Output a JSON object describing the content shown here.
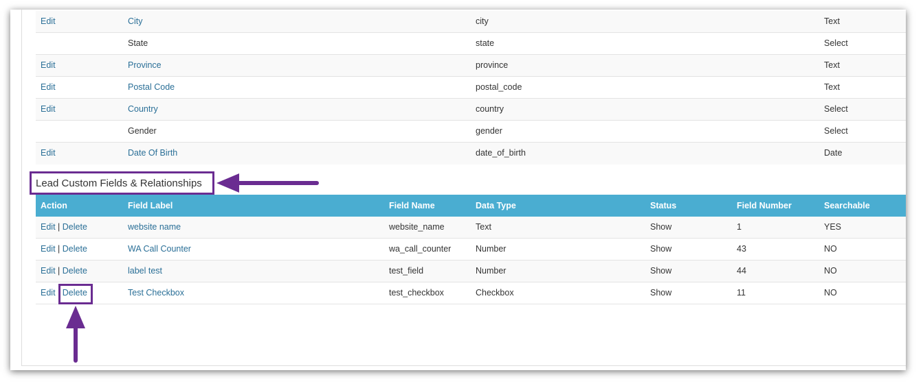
{
  "top_table": {
    "rows": [
      {
        "action": "Edit",
        "label": "City",
        "label_link": true,
        "name": "city",
        "type": "Text"
      },
      {
        "action": "",
        "label": "State",
        "label_link": false,
        "name": "state",
        "type": "Select"
      },
      {
        "action": "Edit",
        "label": "Province",
        "label_link": true,
        "name": "province",
        "type": "Text"
      },
      {
        "action": "Edit",
        "label": "Postal Code",
        "label_link": true,
        "name": "postal_code",
        "type": "Text"
      },
      {
        "action": "Edit",
        "label": "Country",
        "label_link": true,
        "name": "country",
        "type": "Select"
      },
      {
        "action": "",
        "label": "Gender",
        "label_link": false,
        "name": "gender",
        "type": "Select"
      },
      {
        "action": "Edit",
        "label": "Date Of Birth",
        "label_link": true,
        "name": "date_of_birth",
        "type": "Date"
      }
    ]
  },
  "custom_section": {
    "title": "Lead Custom Fields & Relationships",
    "headers": {
      "action": "Action",
      "label": "Field Label",
      "name": "Field Name",
      "type": "Data Type",
      "status": "Status",
      "number": "Field Number",
      "searchable": "Searchable"
    },
    "edit_label": "Edit",
    "separator": "|",
    "delete_label": "Delete",
    "rows": [
      {
        "label": "website name",
        "name": "website_name",
        "type": "Text",
        "status": "Show",
        "number": "1",
        "searchable": "YES"
      },
      {
        "label": "WA Call Counter",
        "name": "wa_call_counter",
        "type": "Number",
        "status": "Show",
        "number": "43",
        "searchable": "NO"
      },
      {
        "label": "label test",
        "name": "test_field",
        "type": "Number",
        "status": "Show",
        "number": "44",
        "searchable": "NO"
      },
      {
        "label": "Test Checkbox",
        "name": "test_checkbox",
        "type": "Checkbox",
        "status": "Show",
        "number": "11",
        "searchable": "NO"
      }
    ]
  },
  "annotation_color": "#6a2c91",
  "header_color": "#4aadd1",
  "link_color": "#2a6f97"
}
